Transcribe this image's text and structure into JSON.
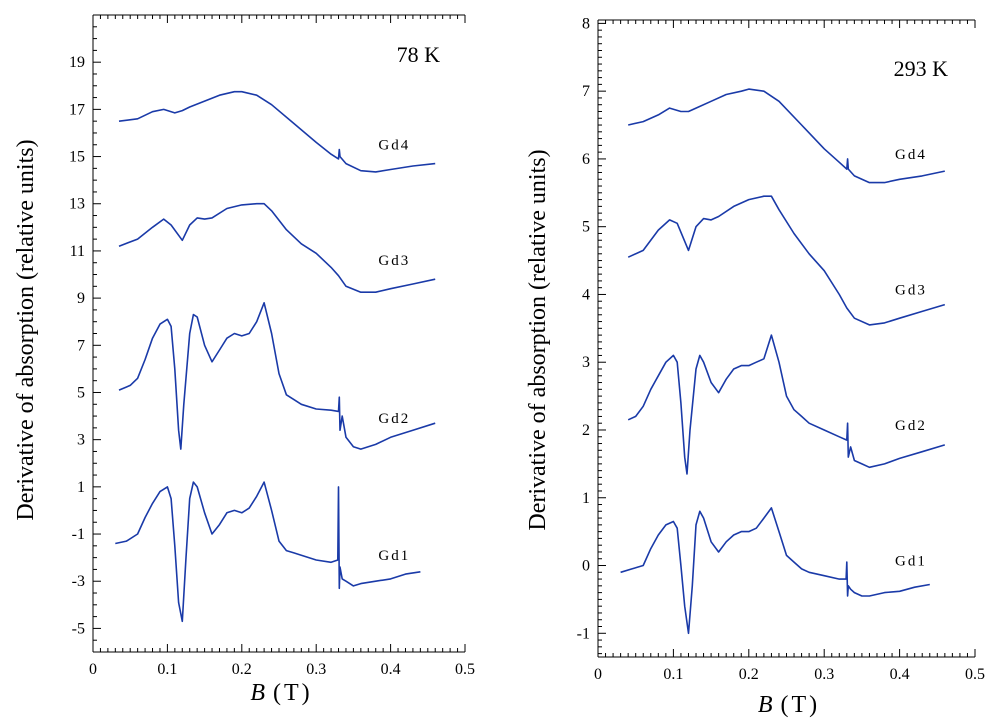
{
  "chart_data": [
    {
      "type": "line",
      "panel": "left",
      "title": "",
      "annotation": "78 K",
      "xlabel_italic": "B",
      "xlabel_unit": "(T)",
      "ylabel": "Derivative of absorption (relative units)",
      "xlim": [
        0,
        0.5
      ],
      "ylim": [
        -6,
        21
      ],
      "x_ticks": [
        "0",
        "0.1",
        "0.2",
        "0.3",
        "0.4",
        "0.5"
      ],
      "y_ticks": [
        "19",
        "17",
        "15",
        "13",
        "11",
        "9",
        "7",
        "5",
        "3",
        "1",
        "-1",
        "-3",
        "-5"
      ],
      "grid": false,
      "color": "#1a3aa8",
      "series": [
        {
          "name": "Gd4",
          "label_pos": [
            0.405,
            15.3
          ],
          "x": [
            0.035,
            0.06,
            0.08,
            0.095,
            0.11,
            0.12,
            0.13,
            0.15,
            0.17,
            0.19,
            0.2,
            0.22,
            0.24,
            0.27,
            0.3,
            0.32,
            0.33,
            0.331,
            0.332,
            0.34,
            0.36,
            0.38,
            0.4,
            0.43,
            0.46
          ],
          "y": [
            16.5,
            16.6,
            16.9,
            17.0,
            16.85,
            16.95,
            17.1,
            17.35,
            17.6,
            17.75,
            17.75,
            17.6,
            17.2,
            16.4,
            15.6,
            15.1,
            14.9,
            15.3,
            15.0,
            14.7,
            14.4,
            14.35,
            14.45,
            14.6,
            14.7
          ]
        },
        {
          "name": "Gd3",
          "label_pos": [
            0.405,
            10.4
          ],
          "x": [
            0.035,
            0.06,
            0.08,
            0.095,
            0.105,
            0.12,
            0.13,
            0.14,
            0.15,
            0.16,
            0.18,
            0.2,
            0.22,
            0.23,
            0.24,
            0.26,
            0.28,
            0.3,
            0.32,
            0.33,
            0.34,
            0.36,
            0.38,
            0.4,
            0.43,
            0.46
          ],
          "y": [
            11.2,
            11.5,
            12.0,
            12.35,
            12.1,
            11.45,
            12.1,
            12.4,
            12.35,
            12.4,
            12.8,
            12.95,
            13.0,
            13.0,
            12.7,
            11.9,
            11.3,
            10.9,
            10.3,
            9.95,
            9.5,
            9.25,
            9.25,
            9.4,
            9.6,
            9.8
          ]
        },
        {
          "name": "Gd2",
          "label_pos": [
            0.405,
            3.7
          ],
          "x": [
            0.035,
            0.05,
            0.06,
            0.07,
            0.08,
            0.09,
            0.1,
            0.105,
            0.11,
            0.115,
            0.118,
            0.122,
            0.13,
            0.135,
            0.14,
            0.15,
            0.16,
            0.17,
            0.18,
            0.19,
            0.2,
            0.21,
            0.22,
            0.23,
            0.24,
            0.25,
            0.26,
            0.27,
            0.28,
            0.3,
            0.32,
            0.33,
            0.331,
            0.332,
            0.335,
            0.34,
            0.35,
            0.36,
            0.38,
            0.4,
            0.43,
            0.46
          ],
          "y": [
            5.1,
            5.3,
            5.6,
            6.4,
            7.3,
            7.9,
            8.1,
            7.8,
            6.0,
            3.4,
            2.6,
            4.5,
            7.5,
            8.3,
            8.2,
            7.0,
            6.3,
            6.8,
            7.3,
            7.5,
            7.4,
            7.5,
            8.0,
            8.8,
            7.5,
            5.8,
            4.9,
            4.7,
            4.5,
            4.3,
            4.25,
            4.2,
            4.8,
            3.4,
            4.0,
            3.1,
            2.7,
            2.6,
            2.8,
            3.1,
            3.4,
            3.7
          ]
        },
        {
          "name": "Gd1",
          "label_pos": [
            0.405,
            -2.1
          ],
          "x": [
            0.03,
            0.045,
            0.06,
            0.07,
            0.08,
            0.09,
            0.1,
            0.105,
            0.11,
            0.115,
            0.12,
            0.125,
            0.13,
            0.135,
            0.14,
            0.15,
            0.16,
            0.17,
            0.18,
            0.19,
            0.2,
            0.21,
            0.22,
            0.23,
            0.24,
            0.25,
            0.26,
            0.27,
            0.28,
            0.3,
            0.32,
            0.329,
            0.33,
            0.331,
            0.332,
            0.335,
            0.34,
            0.35,
            0.36,
            0.38,
            0.4,
            0.42,
            0.44
          ],
          "y": [
            -1.4,
            -1.3,
            -1.0,
            -0.3,
            0.3,
            0.8,
            1.0,
            0.5,
            -1.5,
            -3.9,
            -4.7,
            -2.0,
            0.5,
            1.2,
            1.0,
            -0.1,
            -1.0,
            -0.6,
            -0.1,
            0.0,
            -0.1,
            0.1,
            0.6,
            1.2,
            0.0,
            -1.3,
            -1.7,
            -1.8,
            -1.9,
            -2.1,
            -2.2,
            -2.1,
            1.0,
            -3.3,
            -2.4,
            -2.9,
            -3.0,
            -3.2,
            -3.1,
            -3.0,
            -2.9,
            -2.7,
            -2.6
          ]
        }
      ]
    },
    {
      "type": "line",
      "panel": "right",
      "title": "",
      "annotation": "293 K",
      "xlabel_italic": "B",
      "xlabel_unit": "(T)",
      "ylabel": "Derivative of absorption (relative units)",
      "xlim": [
        0,
        0.5
      ],
      "ylim": [
        -1.35,
        8.05
      ],
      "x_ticks": [
        "0",
        "0.1",
        "0.2",
        "0.3",
        "0.4",
        "0.5"
      ],
      "y_ticks": [
        "8",
        "7",
        "6",
        "5",
        "4",
        "3",
        "2",
        "1",
        "0",
        "-1"
      ],
      "grid": false,
      "color": "#1a3aa8",
      "series": [
        {
          "name": "Gd4",
          "label_pos": [
            0.415,
            6.0
          ],
          "x": [
            0.04,
            0.06,
            0.08,
            0.095,
            0.11,
            0.12,
            0.13,
            0.15,
            0.17,
            0.19,
            0.2,
            0.22,
            0.24,
            0.27,
            0.3,
            0.32,
            0.33,
            0.331,
            0.332,
            0.34,
            0.36,
            0.38,
            0.4,
            0.43,
            0.46
          ],
          "y": [
            6.5,
            6.55,
            6.65,
            6.75,
            6.7,
            6.7,
            6.75,
            6.85,
            6.95,
            7.0,
            7.03,
            7.0,
            6.85,
            6.5,
            6.15,
            5.95,
            5.85,
            6.0,
            5.85,
            5.75,
            5.65,
            5.65,
            5.7,
            5.75,
            5.82
          ]
        },
        {
          "name": "Gd3",
          "label_pos": [
            0.415,
            4.0
          ],
          "x": [
            0.04,
            0.06,
            0.08,
            0.095,
            0.105,
            0.12,
            0.13,
            0.14,
            0.15,
            0.16,
            0.18,
            0.2,
            0.22,
            0.23,
            0.24,
            0.26,
            0.28,
            0.3,
            0.32,
            0.33,
            0.34,
            0.36,
            0.38,
            0.4,
            0.43,
            0.46
          ],
          "y": [
            4.55,
            4.65,
            4.95,
            5.1,
            5.05,
            4.65,
            5.0,
            5.12,
            5.1,
            5.15,
            5.3,
            5.4,
            5.45,
            5.45,
            5.25,
            4.9,
            4.6,
            4.35,
            4.0,
            3.8,
            3.65,
            3.55,
            3.58,
            3.65,
            3.75,
            3.85
          ]
        },
        {
          "name": "Gd2",
          "label_pos": [
            0.415,
            2.0
          ],
          "x": [
            0.04,
            0.05,
            0.06,
            0.07,
            0.08,
            0.09,
            0.1,
            0.105,
            0.11,
            0.115,
            0.118,
            0.122,
            0.13,
            0.135,
            0.14,
            0.15,
            0.16,
            0.17,
            0.18,
            0.19,
            0.2,
            0.21,
            0.22,
            0.23,
            0.24,
            0.25,
            0.26,
            0.27,
            0.28,
            0.3,
            0.32,
            0.33,
            0.331,
            0.332,
            0.335,
            0.34,
            0.35,
            0.36,
            0.38,
            0.4,
            0.43,
            0.46
          ],
          "y": [
            2.15,
            2.2,
            2.35,
            2.6,
            2.8,
            3.0,
            3.1,
            3.0,
            2.4,
            1.6,
            1.35,
            2.0,
            2.9,
            3.1,
            3.0,
            2.7,
            2.55,
            2.75,
            2.9,
            2.95,
            2.95,
            3.0,
            3.05,
            3.4,
            3.0,
            2.5,
            2.3,
            2.2,
            2.1,
            2.0,
            1.9,
            1.85,
            2.1,
            1.6,
            1.75,
            1.55,
            1.5,
            1.45,
            1.5,
            1.58,
            1.68,
            1.78
          ]
        },
        {
          "name": "Gd1",
          "label_pos": [
            0.415,
            0.0
          ],
          "x": [
            0.03,
            0.045,
            0.06,
            0.07,
            0.08,
            0.09,
            0.1,
            0.105,
            0.11,
            0.115,
            0.12,
            0.125,
            0.13,
            0.135,
            0.14,
            0.15,
            0.16,
            0.17,
            0.18,
            0.19,
            0.2,
            0.21,
            0.22,
            0.23,
            0.24,
            0.25,
            0.26,
            0.27,
            0.28,
            0.3,
            0.32,
            0.329,
            0.33,
            0.331,
            0.332,
            0.335,
            0.34,
            0.35,
            0.36,
            0.38,
            0.4,
            0.42,
            0.44
          ],
          "y": [
            -0.1,
            -0.05,
            0.0,
            0.25,
            0.45,
            0.6,
            0.65,
            0.55,
            0.0,
            -0.6,
            -1.0,
            -0.3,
            0.6,
            0.8,
            0.7,
            0.35,
            0.2,
            0.35,
            0.45,
            0.5,
            0.5,
            0.55,
            0.7,
            0.85,
            0.5,
            0.15,
            0.05,
            -0.05,
            -0.1,
            -0.15,
            -0.2,
            -0.2,
            0.05,
            -0.45,
            -0.3,
            -0.35,
            -0.4,
            -0.45,
            -0.45,
            -0.4,
            -0.38,
            -0.32,
            -0.28
          ]
        }
      ]
    }
  ]
}
